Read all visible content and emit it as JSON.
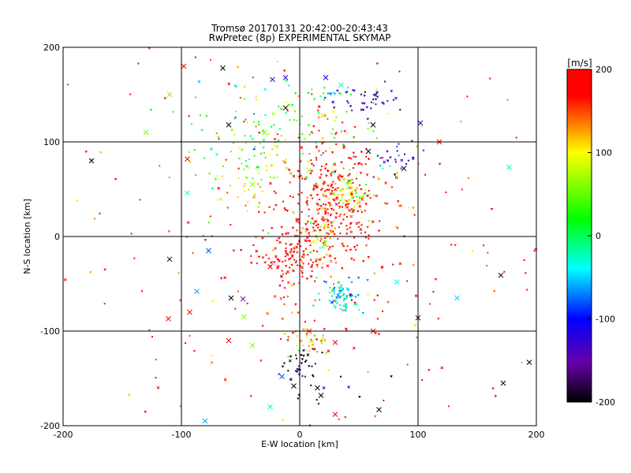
{
  "chart_data": {
    "type": "scatter",
    "title": "Tromsø 20170131 20:42:00-20:43:43",
    "subtitle": "RwPretec (8p) EXPERIMENTAL SKYMAP",
    "xlabel": "E-W location [km]",
    "ylabel": "N-S location [km]",
    "xlim": [
      -200,
      200
    ],
    "ylim": [
      -200,
      200
    ],
    "xticks": [
      -200,
      -100,
      0,
      100,
      200
    ],
    "yticks": [
      -200,
      -100,
      0,
      100,
      200
    ],
    "grid": true,
    "colorbar": {
      "label": "[m/s]",
      "range": [
        -200,
        200
      ],
      "ticks": [
        -200,
        -100,
        0,
        100,
        200
      ],
      "colors": [
        "#000000",
        "#6600aa",
        "#0000ff",
        "#00ffff",
        "#00ff00",
        "#ffff00",
        "#ff0000"
      ]
    },
    "clusters": [
      {
        "x": 25,
        "y": 35,
        "spread_x": 22,
        "spread_y": 32,
        "velocity": 190,
        "count": 320
      },
      {
        "x": 42,
        "y": 45,
        "spread_x": 10,
        "spread_y": 12,
        "velocity": 80,
        "count": 60
      },
      {
        "x": 20,
        "y": 0,
        "spread_x": 8,
        "spread_y": 10,
        "velocity": 100,
        "count": 45
      },
      {
        "x": -8,
        "y": -25,
        "spread_x": 14,
        "spread_y": 12,
        "velocity": 200,
        "count": 90
      },
      {
        "x": 35,
        "y": -65,
        "spread_x": 9,
        "spread_y": 10,
        "velocity": -40,
        "count": 80
      },
      {
        "x": 10,
        "y": -110,
        "spread_x": 9,
        "spread_y": 8,
        "velocity": 110,
        "count": 40
      },
      {
        "x": 0,
        "y": -135,
        "spread_x": 6,
        "spread_y": 10,
        "velocity": -190,
        "count": 30
      },
      {
        "x": 55,
        "y": 145,
        "spread_x": 15,
        "spread_y": 8,
        "velocity": -150,
        "count": 40
      },
      {
        "x": 30,
        "y": 155,
        "spread_x": 8,
        "spread_y": 7,
        "velocity": -30,
        "count": 12
      },
      {
        "x": 0,
        "y": 110,
        "spread_x": 40,
        "spread_y": 20,
        "velocity": 60,
        "count": 70
      },
      {
        "x": -40,
        "y": 70,
        "spread_x": 25,
        "spread_y": 25,
        "velocity": 80,
        "count": 60
      },
      {
        "x": 75,
        "y": 80,
        "spread_x": 15,
        "spread_y": 10,
        "velocity": -120,
        "count": 30
      },
      {
        "x": 0,
        "y": 0,
        "spread_x": 110,
        "spread_y": 120,
        "velocity": 170,
        "count": 260
      },
      {
        "x": -40,
        "y": 120,
        "spread_x": 35,
        "spread_y": 35,
        "velocity": 0,
        "count": 60
      },
      {
        "x": 20,
        "y": -160,
        "spread_x": 15,
        "spread_y": 15,
        "velocity": -200,
        "count": 15
      }
    ],
    "crosses": [
      {
        "x": -98,
        "y": 180,
        "v": 180
      },
      {
        "x": -65,
        "y": 178,
        "v": -200
      },
      {
        "x": -23,
        "y": 166,
        "v": -100
      },
      {
        "x": -12,
        "y": 168,
        "v": -130
      },
      {
        "x": 22,
        "y": 168,
        "v": -100
      },
      {
        "x": 35,
        "y": 160,
        "v": -30
      },
      {
        "x": -110,
        "y": 150,
        "v": 60
      },
      {
        "x": -60,
        "y": 118,
        "v": -200
      },
      {
        "x": -12,
        "y": 136,
        "v": -200
      },
      {
        "x": 62,
        "y": 118,
        "v": -200
      },
      {
        "x": 102,
        "y": 120,
        "v": -100
      },
      {
        "x": 118,
        "y": 100,
        "v": 200
      },
      {
        "x": -176,
        "y": 80,
        "v": -200
      },
      {
        "x": -95,
        "y": 46,
        "v": -30
      },
      {
        "x": 58,
        "y": 90,
        "v": -200
      },
      {
        "x": 88,
        "y": 72,
        "v": -200
      },
      {
        "x": 177,
        "y": 73,
        "v": -20
      },
      {
        "x": 42,
        "y": 58,
        "v": 50
      },
      {
        "x": 8,
        "y": 70,
        "v": 70
      },
      {
        "x": -110,
        "y": -24,
        "v": -200
      },
      {
        "x": -77,
        "y": -15,
        "v": -80
      },
      {
        "x": -87,
        "y": -58,
        "v": -60
      },
      {
        "x": -58,
        "y": -65,
        "v": -200
      },
      {
        "x": -48,
        "y": -66,
        "v": -150
      },
      {
        "x": -25,
        "y": -32,
        "v": 200
      },
      {
        "x": 82,
        "y": -48,
        "v": -40
      },
      {
        "x": 133,
        "y": -65,
        "v": -50
      },
      {
        "x": 100,
        "y": -86,
        "v": -200
      },
      {
        "x": -111,
        "y": -87,
        "v": 200
      },
      {
        "x": -93,
        "y": -80,
        "v": 200
      },
      {
        "x": -47,
        "y": -85,
        "v": 60
      },
      {
        "x": 170,
        "y": -41,
        "v": -200
      },
      {
        "x": -60,
        "y": -110,
        "v": 200
      },
      {
        "x": -40,
        "y": -115,
        "v": 60
      },
      {
        "x": 8,
        "y": -100,
        "v": 160
      },
      {
        "x": 30,
        "y": -112,
        "v": 200
      },
      {
        "x": 62,
        "y": -100,
        "v": 200
      },
      {
        "x": -15,
        "y": -148,
        "v": -80
      },
      {
        "x": -5,
        "y": -158,
        "v": -200
      },
      {
        "x": 15,
        "y": -160,
        "v": -200
      },
      {
        "x": 18,
        "y": -168,
        "v": -200
      },
      {
        "x": 67,
        "y": -183,
        "v": -200
      },
      {
        "x": 30,
        "y": -188,
        "v": 200
      },
      {
        "x": -25,
        "y": -180,
        "v": -30
      },
      {
        "x": 172,
        "y": -155,
        "v": -200
      },
      {
        "x": 194,
        "y": -133,
        "v": -200
      },
      {
        "x": -80,
        "y": -195,
        "v": -60
      },
      {
        "x": -40,
        "y": 55,
        "v": 60
      },
      {
        "x": -130,
        "y": 110,
        "v": 60
      },
      {
        "x": -95,
        "y": 82,
        "v": 200
      },
      {
        "x": -30,
        "y": 110,
        "v": 50
      },
      {
        "x": 20,
        "y": 128,
        "v": 110
      }
    ]
  }
}
